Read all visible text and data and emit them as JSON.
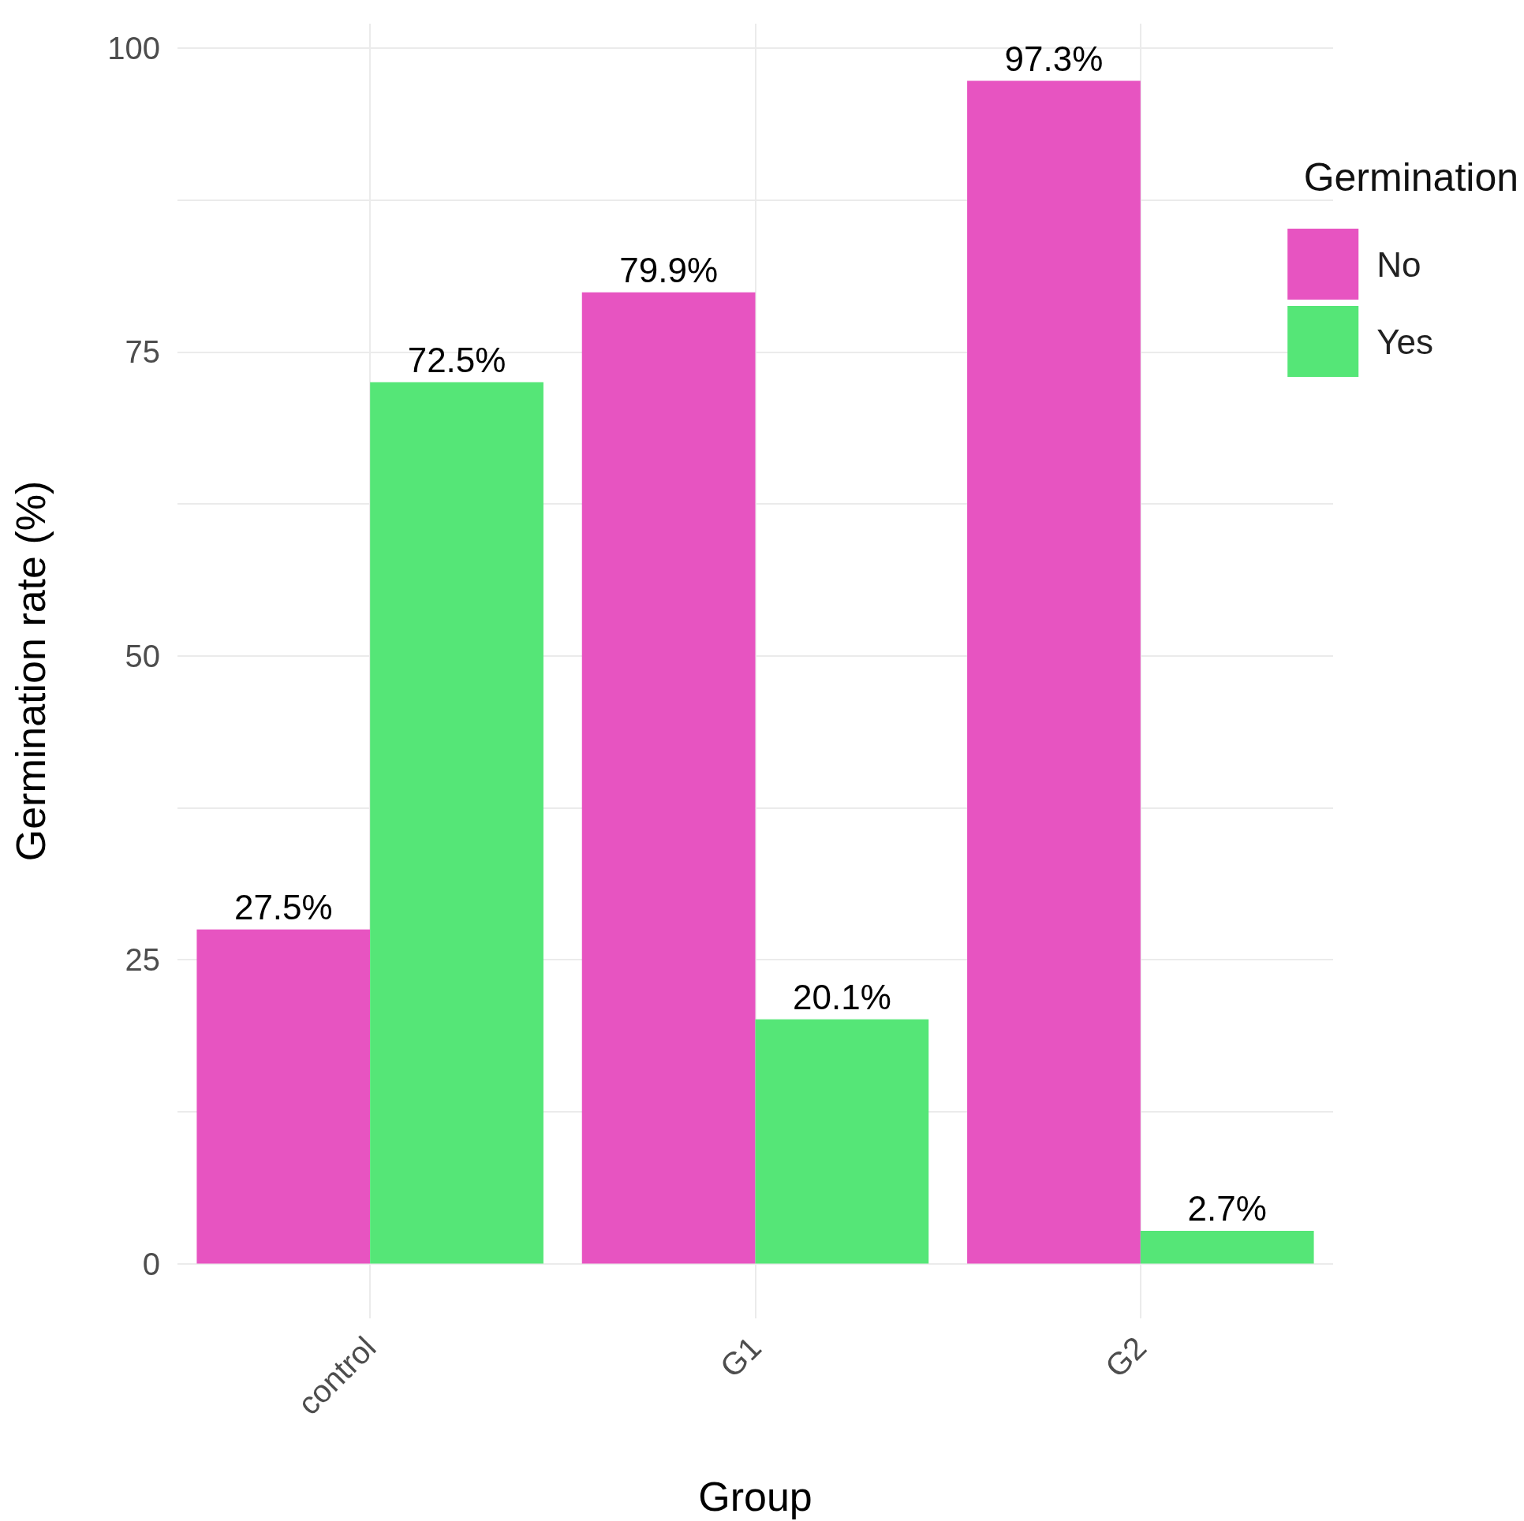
{
  "chart_data": {
    "type": "bar",
    "xlabel": "Group",
    "ylabel": "Germination rate (%)",
    "legend_title": "Germination",
    "categories": [
      "control",
      "G1",
      "G2"
    ],
    "series": [
      {
        "name": "No",
        "color": "#e754c1",
        "values": [
          27.5,
          79.9,
          97.3
        ],
        "value_labels": [
          "27.5%",
          "79.9%",
          "97.3%"
        ]
      },
      {
        "name": "Yes",
        "color": "#55e677",
        "values": [
          72.5,
          20.1,
          2.7
        ],
        "value_labels": [
          "72.5%",
          "20.1%",
          "2.7%"
        ]
      }
    ],
    "ylim": [
      -4.5,
      102
    ],
    "yticks": [
      0,
      {
        "value": 12.5,
        "label": null
      },
      25,
      {
        "value": 37.5,
        "label": null
      },
      50,
      {
        "value": 62.5,
        "label": null
      },
      75,
      {
        "value": 87.5,
        "label": null
      },
      100
    ],
    "grid": true,
    "legend": "right"
  }
}
